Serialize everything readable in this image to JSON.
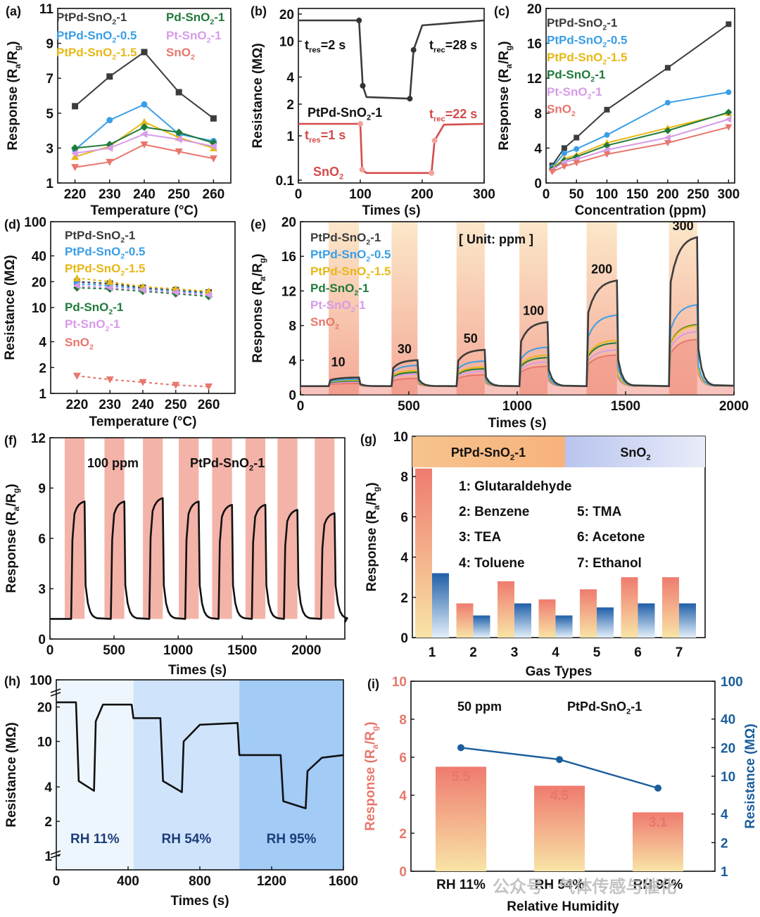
{
  "series_colors": {
    "PtPd-SnO2-1": "#3c3c3c",
    "PtPd-SnO2-0.5": "#3a9ee6",
    "PtPd-SnO2-1.5": "#e7b816",
    "Pd-SnO2-1": "#1f7a3a",
    "Pt-SnO2-1": "#d79be8",
    "SnO2": "#e8766c"
  },
  "chart_data": [
    {
      "panel": "(a)",
      "type": "line",
      "xlabel": "Temperature (°C)",
      "ylabel": "Response (Ra/Rg)",
      "xlim": [
        215,
        265
      ],
      "ylim": [
        1,
        11
      ],
      "xticks": [
        220,
        230,
        240,
        250,
        260
      ],
      "yticks": [
        1,
        3,
        5,
        7,
        9,
        11
      ],
      "x": [
        220,
        230,
        240,
        250,
        260
      ],
      "series": [
        {
          "name": "PtPd-SnO2-1",
          "values": [
            5.4,
            7.1,
            8.5,
            6.2,
            4.7
          ]
        },
        {
          "name": "PtPd-SnO2-0.5",
          "values": [
            2.9,
            4.6,
            5.5,
            3.8,
            3.4
          ]
        },
        {
          "name": "PtPd-SnO2-1.5",
          "values": [
            2.5,
            3.1,
            4.5,
            3.6,
            3.0
          ]
        },
        {
          "name": "Pd-SnO2-1",
          "values": [
            3.0,
            3.2,
            4.2,
            3.9,
            3.3
          ]
        },
        {
          "name": "Pt-SnO2-1",
          "values": [
            2.7,
            3.0,
            3.8,
            3.5,
            3.1
          ]
        },
        {
          "name": "SnO2",
          "values": [
            1.9,
            2.2,
            3.2,
            2.8,
            2.4
          ]
        }
      ],
      "legend": [
        "PtPd-SnO2-1",
        "Pd-SnO2-1",
        "PtPd-SnO2-0.5",
        "Pt-SnO2-1",
        "PtPd-SnO2-1.5",
        "SnO2"
      ]
    },
    {
      "panel": "(b)",
      "type": "line",
      "xlabel": "Times (s)",
      "ylabel": "Resistance (MΩ)",
      "xlim": [
        0,
        300
      ],
      "yticks": [
        20,
        10,
        4,
        2,
        1,
        0.1
      ],
      "xticks": [
        0,
        100,
        200,
        300
      ],
      "series": [
        {
          "name": "PtPd-SnO2-1",
          "points": [
            [
              0,
              17
            ],
            [
              98,
              17
            ],
            [
              104,
              3.2
            ],
            [
              110,
              2.4
            ],
            [
              180,
              2.3
            ],
            [
              186,
              8
            ],
            [
              200,
              15
            ],
            [
              300,
              17
            ]
          ]
        },
        {
          "name": "SnO2",
          "points": [
            [
              0,
              1.3
            ],
            [
              100,
              1.3
            ],
            [
              103,
              0.2
            ],
            [
              110,
              0.12
            ],
            [
              215,
              0.12
            ],
            [
              220,
              0.9
            ],
            [
              235,
              1.28
            ],
            [
              300,
              1.3
            ]
          ]
        }
      ],
      "annotations": {
        "tres_a": "tres=2 s",
        "trec_a": "trec=28 s",
        "tres_b": "tres=1 s",
        "trec_b": "trec=22 s",
        "label_a": "PtPd-SnO2-1",
        "label_b": "SnO2"
      }
    },
    {
      "panel": "(c)",
      "type": "line",
      "xlabel": "Concentration (ppm)",
      "ylabel": "Response (Ra/Rg)",
      "xlim": [
        0,
        310
      ],
      "ylim": [
        0,
        20
      ],
      "xticks": [
        0,
        50,
        100,
        150,
        200,
        250,
        300
      ],
      "yticks": [
        0,
        4,
        8,
        12,
        16,
        20
      ],
      "x": [
        10,
        30,
        50,
        100,
        200,
        300
      ],
      "series": [
        {
          "name": "PtPd-SnO2-1",
          "values": [
            2.0,
            4.0,
            5.2,
            8.4,
            13.2,
            18.2
          ]
        },
        {
          "name": "PtPd-SnO2-0.5",
          "values": [
            1.8,
            3.4,
            3.9,
            5.5,
            9.2,
            10.4
          ]
        },
        {
          "name": "PtPd-SnO2-1.5",
          "values": [
            1.7,
            2.8,
            3.2,
            4.6,
            6.3,
            8.0
          ]
        },
        {
          "name": "Pd-SnO2-1",
          "values": [
            1.6,
            2.6,
            3.0,
            4.3,
            6.0,
            8.1
          ]
        },
        {
          "name": "Pt-SnO2-1",
          "values": [
            1.5,
            2.4,
            2.7,
            3.8,
            5.2,
            7.3
          ]
        },
        {
          "name": "SnO2",
          "values": [
            1.3,
            1.9,
            2.3,
            3.3,
            4.6,
            6.4
          ]
        }
      ]
    },
    {
      "panel": "(d)",
      "type": "scatter",
      "xlabel": "Temperature (°C)",
      "ylabel": "Resistance (MΩ)",
      "xticks": [
        220,
        230,
        240,
        250,
        260
      ],
      "yticks": [
        1,
        2,
        4,
        10,
        20,
        40,
        100
      ],
      "x": [
        220,
        230,
        240,
        250,
        260
      ],
      "series": [
        {
          "name": "PtPd-SnO2-1",
          "values": [
            20,
            19,
            17,
            16,
            15
          ]
        },
        {
          "name": "PtPd-SnO2-0.5",
          "values": [
            19,
            18,
            16.5,
            15.5,
            14.5
          ]
        },
        {
          "name": "PtPd-SnO2-1.5",
          "values": [
            22,
            20,
            17.5,
            16.5,
            15.5
          ]
        },
        {
          "name": "Pd-SnO2-1",
          "values": [
            17,
            16.5,
            15.5,
            14.5,
            13.5
          ]
        },
        {
          "name": "Pt-SnO2-1",
          "values": [
            18,
            17,
            16,
            15,
            14
          ]
        },
        {
          "name": "SnO2",
          "values": [
            1.6,
            1.45,
            1.35,
            1.25,
            1.2
          ]
        }
      ]
    },
    {
      "panel": "(e)",
      "type": "line",
      "xlabel": "Times (s)",
      "ylabel": "Response (Ra/Rg)",
      "xlim": [
        0,
        2000
      ],
      "ylim": [
        0,
        20
      ],
      "xticks": [
        0,
        500,
        1000,
        1500,
        2000
      ],
      "yticks": [
        0,
        4,
        8,
        12,
        16,
        20
      ],
      "unit_note": "[ Unit: ppm ]",
      "pulses": [
        {
          "label": "10",
          "on": 130,
          "off": 270
        },
        {
          "label": "30",
          "on": 420,
          "off": 540
        },
        {
          "label": "50",
          "on": 720,
          "off": 850
        },
        {
          "label": "100",
          "on": 1010,
          "off": 1140
        },
        {
          "label": "200",
          "on": 1320,
          "off": 1460
        },
        {
          "label": "300",
          "on": 1700,
          "off": 1830
        }
      ],
      "series": [
        {
          "name": "PtPd-SnO2-1",
          "values": [
            2.0,
            4.0,
            5.2,
            8.4,
            13.2,
            18.2
          ]
        },
        {
          "name": "PtPd-SnO2-0.5",
          "values": [
            1.8,
            3.4,
            3.9,
            5.5,
            9.2,
            10.4
          ]
        },
        {
          "name": "PtPd-SnO2-1.5",
          "values": [
            1.7,
            2.8,
            3.2,
            4.6,
            6.3,
            8.0
          ]
        },
        {
          "name": "Pd-SnO2-1",
          "values": [
            1.6,
            2.6,
            3.0,
            4.3,
            6.0,
            8.1
          ]
        },
        {
          "name": "Pt-SnO2-1",
          "values": [
            1.5,
            2.4,
            2.7,
            3.8,
            5.2,
            7.3
          ]
        },
        {
          "name": "SnO2",
          "values": [
            1.3,
            1.9,
            2.3,
            3.3,
            4.6,
            6.4
          ]
        }
      ]
    },
    {
      "panel": "(f)",
      "type": "line",
      "xlabel": "Times (s)",
      "ylabel": "Response (Ra/Rg)",
      "xlim": [
        0,
        2300
      ],
      "ylim": [
        0,
        12
      ],
      "xticks": [
        0,
        500,
        1000,
        1500,
        2000
      ],
      "yticks": [
        0,
        3,
        6,
        9,
        12
      ],
      "note_conc": "100 ppm",
      "note_sample": "PtPd-SnO2-1",
      "baseline": 1.2,
      "cycles": [
        {
          "on": 170,
          "off": 270,
          "peak": 8.2
        },
        {
          "on": 480,
          "off": 580,
          "peak": 8.2
        },
        {
          "on": 780,
          "off": 880,
          "peak": 8.4
        },
        {
          "on": 1060,
          "off": 1160,
          "peak": 8.2
        },
        {
          "on": 1320,
          "off": 1420,
          "peak": 8.0
        },
        {
          "on": 1580,
          "off": 1680,
          "peak": 8.0
        },
        {
          "on": 1830,
          "off": 1930,
          "peak": 7.7
        },
        {
          "on": 2120,
          "off": 2220,
          "peak": 7.5
        }
      ]
    },
    {
      "panel": "(g)",
      "type": "bar",
      "xlabel": "Gas Types",
      "ylabel": "Response (Ra/Rg)",
      "ylim": [
        0,
        10
      ],
      "yticks": [
        0,
        2,
        4,
        6,
        8,
        10
      ],
      "categories": [
        "1",
        "2",
        "3",
        "4",
        "5",
        "6",
        "7"
      ],
      "series": [
        {
          "name": "PtPd-SnO2-1",
          "values": [
            8.4,
            1.7,
            2.8,
            1.9,
            2.4,
            3.0,
            3.0
          ]
        },
        {
          "name": "SnO2",
          "values": [
            3.2,
            1.1,
            1.7,
            1.1,
            1.5,
            1.7,
            1.7
          ]
        }
      ],
      "header_left": "PtPd-SnO2-1",
      "header_right": "SnO2",
      "gas_legend": [
        "1: Glutaraldehyde",
        "2: Benzene",
        "3: TEA",
        "4: Toluene",
        "5: TMA",
        "6: Acetone",
        "7: Ethanol"
      ]
    },
    {
      "panel": "(h)",
      "type": "line",
      "xlabel": "Times (s)",
      "ylabel": "Resistance (MΩ)",
      "xlim": [
        0,
        1600
      ],
      "xticks": [
        0,
        400,
        800,
        1200,
        1600
      ],
      "yticks": [
        1,
        2,
        4,
        10,
        20,
        100
      ],
      "regions": [
        {
          "label": "RH 11%",
          "from": 0,
          "to": 430,
          "color": "#eef6fd"
        },
        {
          "label": "RH 54%",
          "from": 430,
          "to": 1020,
          "color": "#cfe4fb"
        },
        {
          "label": "RH 95%",
          "from": 1020,
          "to": 1600,
          "color": "#a2cbf6"
        }
      ],
      "points": [
        [
          0,
          22
        ],
        [
          110,
          22
        ],
        [
          125,
          4.5
        ],
        [
          210,
          3.7
        ],
        [
          220,
          15
        ],
        [
          260,
          21
        ],
        [
          420,
          21
        ],
        [
          430,
          16
        ],
        [
          580,
          16
        ],
        [
          595,
          4.5
        ],
        [
          700,
          3.6
        ],
        [
          710,
          10
        ],
        [
          800,
          14
        ],
        [
          1010,
          14.5
        ],
        [
          1020,
          7.6
        ],
        [
          1250,
          7.6
        ],
        [
          1265,
          3.0
        ],
        [
          1390,
          2.6
        ],
        [
          1400,
          5.5
        ],
        [
          1480,
          7.2
        ],
        [
          1600,
          7.6
        ]
      ]
    },
    {
      "panel": "(i)",
      "type": "bar",
      "xlabel": "Relative Humidity",
      "ylabel": "Response (Ra/Rg)",
      "ylabel_right": "Resistance (MΩ)",
      "ylim": [
        0,
        10
      ],
      "yticks": [
        0,
        2,
        4,
        6,
        8,
        10
      ],
      "yticks_right": [
        1,
        2,
        4,
        10,
        20,
        40,
        100
      ],
      "categories": [
        "RH 11%",
        "RH 54%",
        "RH 95%"
      ],
      "values": [
        5.5,
        4.5,
        3.1
      ],
      "value_labels": [
        "5.5",
        "4.5",
        "3.1"
      ],
      "resistance": [
        20,
        15,
        7.5
      ],
      "note_conc": "50 ppm",
      "note_sample": "PtPd-SnO2-1"
    }
  ],
  "watermark": "公众号 · 气体传感与催化"
}
